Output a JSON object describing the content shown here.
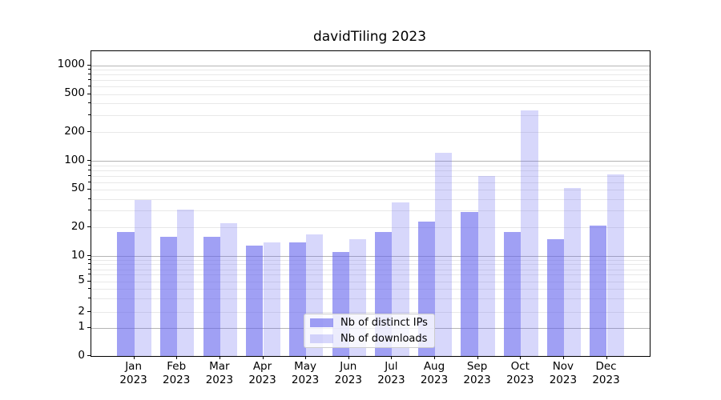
{
  "chart_data": {
    "type": "bar",
    "title": "davidTiling 2023",
    "categories": [
      "Jan 2023",
      "Feb 2023",
      "Mar 2023",
      "Apr 2023",
      "May 2023",
      "Jun 2023",
      "Jul 2023",
      "Aug 2023",
      "Sep 2023",
      "Oct 2023",
      "Nov 2023",
      "Dec 2023"
    ],
    "series": [
      {
        "name": "Nb of distinct IPs",
        "color": "rgba(102,102,238,0.62)",
        "values": [
          18,
          16,
          16,
          13,
          14,
          11,
          18,
          23,
          29,
          18,
          15,
          21
        ]
      },
      {
        "name": "Nb of downloads",
        "color": "rgba(102,102,238,0.26)",
        "values": [
          39,
          31,
          22,
          14,
          17,
          15,
          37,
          122,
          69,
          340,
          52,
          72
        ]
      }
    ],
    "xlabel": "",
    "ylabel": "",
    "yscale": "symlog",
    "ylim": [
      0,
      1400
    ],
    "ytick_values": [
      0,
      1,
      2,
      5,
      10,
      20,
      50,
      100,
      200,
      500,
      1000
    ],
    "ytick_labels": [
      "0",
      "1",
      "2",
      "5",
      "10",
      "20",
      "50",
      "100",
      "200",
      "500",
      "1000"
    ],
    "grid": "horizontal major and minor",
    "legend_position": "inside lower-center"
  },
  "colors": {
    "bar_base": "#6666ee",
    "grid_major": "#b4b4b4",
    "grid_minor": "#e8e8e8",
    "spine": "#000000",
    "background": "#ffffff",
    "legend_border": "#cccccc"
  }
}
